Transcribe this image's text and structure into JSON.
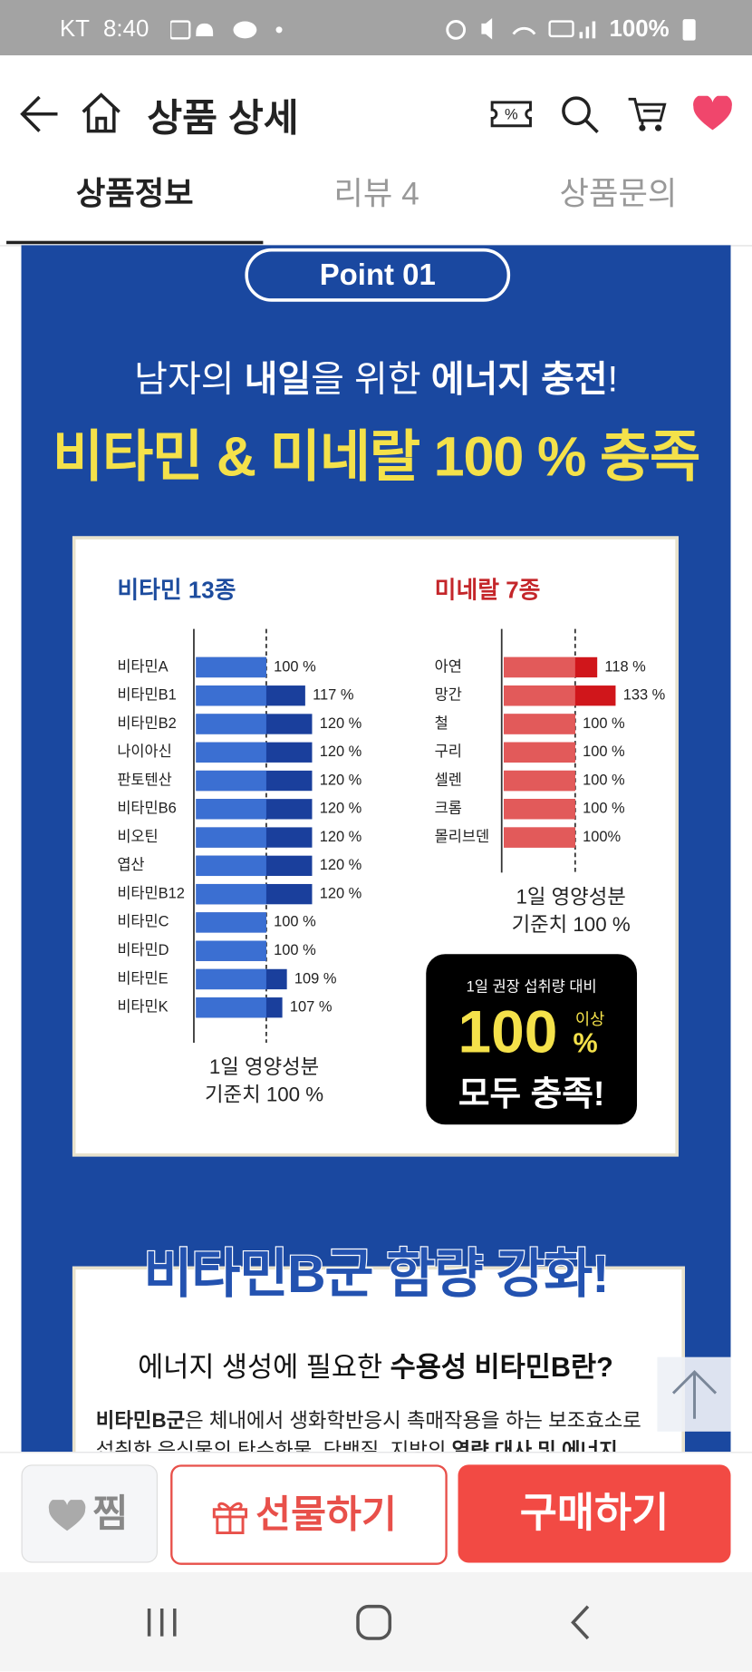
{
  "status_bar": {
    "carrier": "KT",
    "time": "8:40",
    "battery": "100%"
  },
  "header": {
    "title": "상품 상세"
  },
  "tabs": [
    "상품정보",
    "리뷰 4",
    "상품문의"
  ],
  "promo": {
    "badge": "Point 01",
    "headline": [
      {
        "text": "남자의 ",
        "bold": false
      },
      {
        "text": "내일",
        "bold": true
      },
      {
        "text": "을 위한 ",
        "bold": false
      },
      {
        "text": "에너지 충전",
        "bold": true
      },
      {
        "text": "!",
        "bold": false
      }
    ],
    "title": "비타민 & 미네랄 100 % 충족",
    "summary_box": {
      "caption": "1일 권장 섭취량 대비",
      "number": "100",
      "qualifier": "이상",
      "unit": "%",
      "text": "모두 충족!"
    },
    "section_title": "비타민B군 함량 강화!",
    "question": [
      {
        "text": "에너지 생성에 필요한 ",
        "bold": false
      },
      {
        "text": "수용성 비타민B란?",
        "bold": true
      }
    ],
    "description": [
      [
        {
          "text": "비타민B군",
          "bold": true
        },
        {
          "text": "은 체내에서 생화학반응시 촉매작용을 하는 보조효소로",
          "bold": false
        }
      ],
      [
        {
          "text": "섭취한 음식물의 탄수화물, 단백질, 지방의 ",
          "bold": false
        },
        {
          "text": "열량 대사 및 에너지",
          "bold": true
        }
      ]
    ]
  },
  "chart_data": [
    {
      "type": "bar",
      "orientation": "horizontal",
      "title": "비타민 13종",
      "title_color": "#1d4c9e",
      "categories": [
        "비타민A",
        "비타민B1",
        "비타민B2",
        "나이아신",
        "판토텐산",
        "비타민B6",
        "비오틴",
        "엽산",
        "비타민B12",
        "비타민C",
        "비타민D",
        "비타민E",
        "비타민K"
      ],
      "values": [
        100,
        117,
        120,
        120,
        120,
        120,
        120,
        120,
        120,
        100,
        100,
        109,
        107
      ],
      "value_labels": [
        "100 %",
        "117 %",
        "120 %",
        "120 %",
        "120 %",
        "120 %",
        "120 %",
        "120 %",
        "120 %",
        "100 %",
        "100 %",
        "109 %",
        "107 %"
      ],
      "color": "#3b6fd2",
      "excess_color": "#1a3f9c",
      "reference": {
        "value": 100,
        "label": [
          "1일 영양성분",
          "기준치 100 %"
        ]
      }
    },
    {
      "type": "bar",
      "orientation": "horizontal",
      "title": "미네랄 7종",
      "title_color": "#c4262a",
      "categories": [
        "아연",
        "망간",
        "철",
        "구리",
        "셀렌",
        "크롬",
        "몰리브덴"
      ],
      "values": [
        118,
        133,
        100,
        100,
        100,
        100,
        100
      ],
      "value_labels": [
        "118 %",
        "133 %",
        "100 %",
        "100 %",
        "100 %",
        "100 %",
        "100%"
      ],
      "color": "#e25a5a",
      "excess_color": "#d0161b",
      "reference": {
        "value": 100,
        "label": [
          "1일 영양성분",
          "기준치 100 %"
        ]
      }
    }
  ],
  "bottom_bar": {
    "wish": "찜",
    "gift": "선물하기",
    "buy": "구매하기"
  }
}
